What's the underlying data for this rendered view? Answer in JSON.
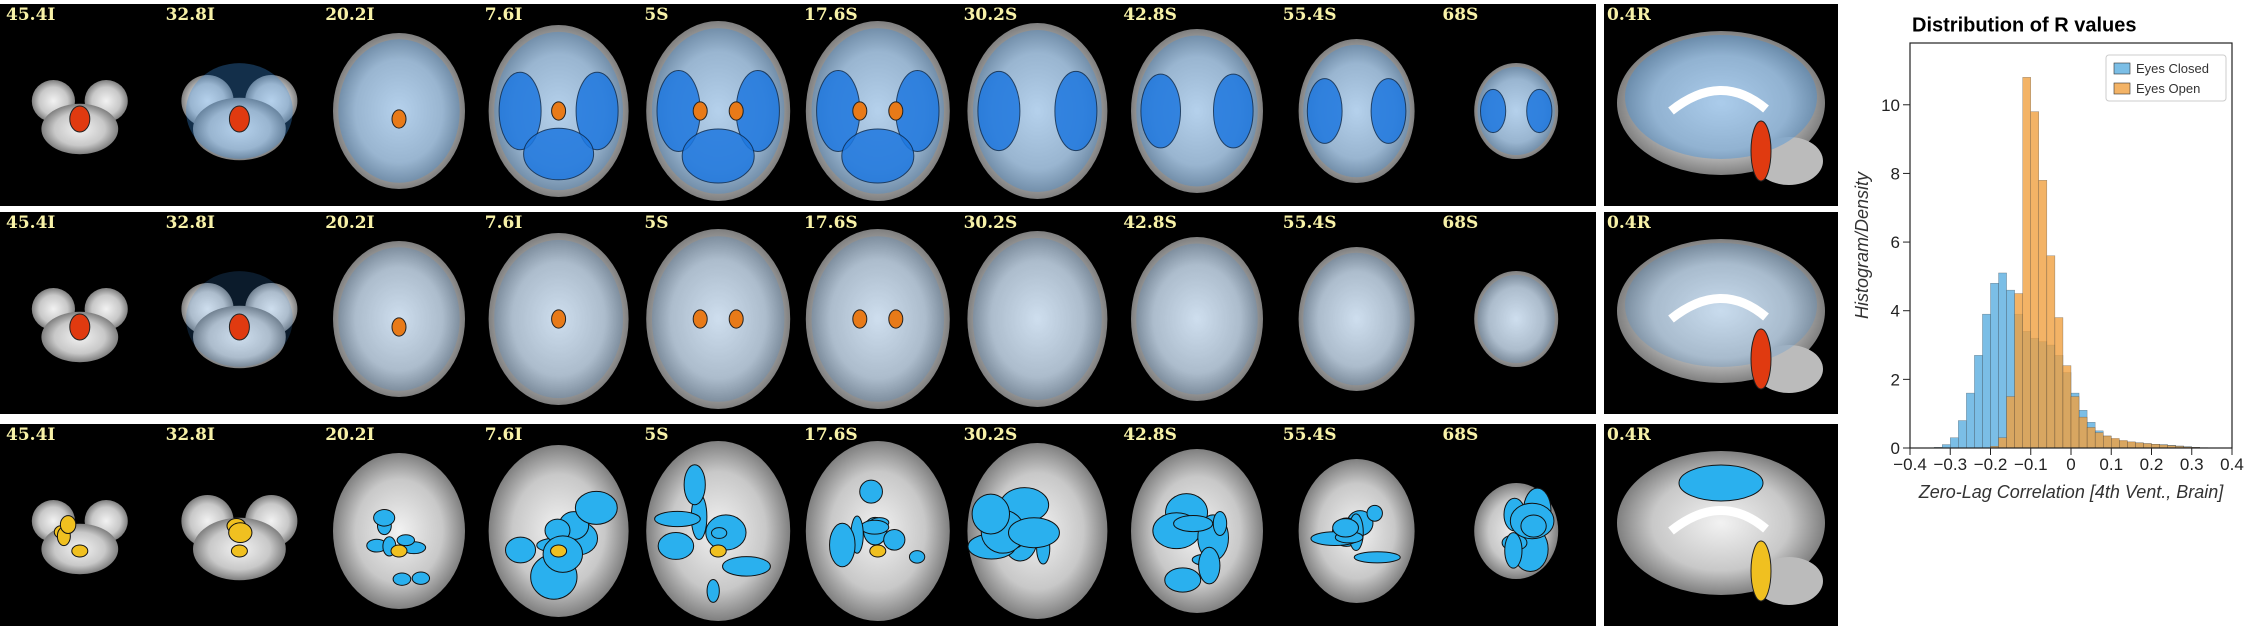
{
  "slice_labels": [
    "45.4I",
    "32.8I",
    "20.2I",
    "7.6I",
    "5S",
    "17.6S",
    "30.2S",
    "42.8S",
    "55.4S",
    "68S"
  ],
  "sagittal_label": "0.4R",
  "chart_data": {
    "type": "histogram",
    "title": "Distribution of R values",
    "x_label": "Zero-Lag Correlation [4th Vent., Brain]",
    "y_label": "Histogram/Density",
    "bins": [
      -0.4,
      -0.38,
      -0.36,
      -0.34,
      -0.32,
      -0.3,
      -0.28,
      -0.26,
      -0.24,
      -0.22,
      -0.2,
      -0.18,
      -0.16,
      -0.14,
      -0.12,
      -0.1,
      -0.08,
      -0.06,
      -0.04,
      -0.02,
      0,
      0.02,
      0.04,
      0.06,
      0.08,
      0.1,
      0.12,
      0.14,
      0.16,
      0.18,
      0.2,
      0.22,
      0.24,
      0.26,
      0.28,
      0.3,
      0.32,
      0.34,
      0.36,
      0.38,
      0.4
    ],
    "series": [
      {
        "name": "Eyes Closed",
        "color": "#5aaee0",
        "values": [
          0,
          0,
          0,
          0.02,
          0.1,
          0.3,
          0.8,
          1.6,
          2.7,
          3.9,
          4.8,
          5.1,
          4.6,
          3.9,
          3.4,
          3.2,
          3.1,
          3.0,
          2.7,
          2.2,
          1.6,
          1.1,
          0.75,
          0.5,
          0.35,
          0.25,
          0.2,
          0.17,
          0.15,
          0.13,
          0.11,
          0.1,
          0.08,
          0.06,
          0.04,
          0.02,
          0.01,
          0,
          0,
          0
        ]
      },
      {
        "name": "Eyes Open",
        "color": "#f0a040",
        "values": [
          0,
          0,
          0,
          0,
          0,
          0,
          0,
          0,
          0,
          0,
          0.05,
          0.3,
          1.5,
          4.5,
          10.8,
          9.8,
          7.8,
          5.6,
          3.8,
          2.4,
          1.5,
          0.9,
          0.6,
          0.45,
          0.35,
          0.28,
          0.22,
          0.18,
          0.15,
          0.13,
          0.11,
          0.09,
          0.07,
          0.05,
          0.03,
          0.02,
          0.01,
          0,
          0,
          0
        ]
      }
    ],
    "xlim": [
      -0.4,
      0.4
    ],
    "ylim": [
      0,
      11.8
    ],
    "xticks": [
      {
        "value": -0.4,
        "label": "−0.4"
      },
      {
        "value": -0.3,
        "label": "−0.3"
      },
      {
        "value": -0.2,
        "label": "−0.2"
      },
      {
        "value": -0.1,
        "label": "−0.1"
      },
      0,
      0.1,
      0.2,
      0.3,
      0.4
    ],
    "yticks": [
      0,
      2,
      4,
      6,
      8,
      10
    ],
    "legend": "upper right"
  }
}
